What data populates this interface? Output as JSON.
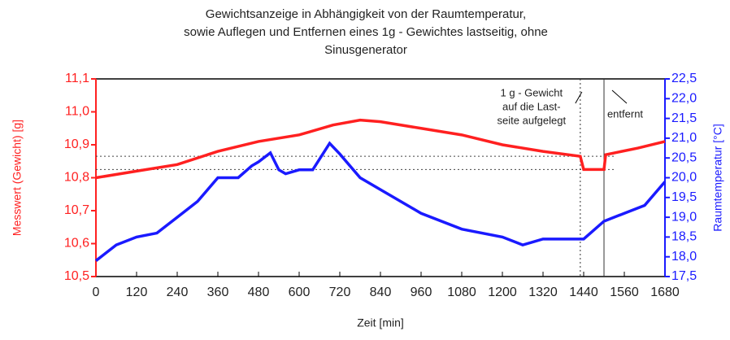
{
  "chart_data": {
    "type": "line",
    "title": [
      "Gewichtsanzeige in Abhängigkeit von der Raumtemperatur,",
      "sowie Auflegen und Entfernen eines 1g - Gewichtes lastseitig, ohne",
      "Sinusgenerator"
    ],
    "xlabel": "Zeit [min]",
    "ylabel": "Messwert (Gewicht) [g]",
    "y2label": "Raumtemperatur [°C]",
    "xlim": [
      0,
      1680
    ],
    "xticks": [
      0,
      120,
      240,
      360,
      480,
      600,
      720,
      840,
      960,
      1080,
      1200,
      1320,
      1440,
      1560,
      1680
    ],
    "ylim": [
      10.5,
      11.1
    ],
    "yticks": [
      {
        "value": 10.5,
        "label": "10,5"
      },
      {
        "value": 10.6,
        "label": "10,6"
      },
      {
        "value": 10.7,
        "label": "10,7"
      },
      {
        "value": 10.8,
        "label": "10,8"
      },
      {
        "value": 10.9,
        "label": "10,9"
      },
      {
        "value": 11.0,
        "label": "11,0"
      },
      {
        "value": 11.1,
        "label": "11,1"
      }
    ],
    "y2lim": [
      17.5,
      22.5
    ],
    "y2ticks": [
      {
        "value": 17.5,
        "label": "17,5"
      },
      {
        "value": 18.0,
        "label": "18,0"
      },
      {
        "value": 18.5,
        "label": "18,5"
      },
      {
        "value": 19.0,
        "label": "19,0"
      },
      {
        "value": 19.5,
        "label": "19,5"
      },
      {
        "value": 20.0,
        "label": "20,0"
      },
      {
        "value": 20.5,
        "label": "20,5"
      },
      {
        "value": 21.0,
        "label": "21,0"
      },
      {
        "value": 21.5,
        "label": "21,5"
      },
      {
        "value": 22.0,
        "label": "22,0"
      },
      {
        "value": 22.5,
        "label": "22,5"
      }
    ],
    "series": [
      {
        "color": "#ff2020",
        "x": [
          0,
          120,
          240,
          360,
          480,
          600,
          700,
          780,
          840,
          960,
          1080,
          1200,
          1320,
          1430,
          1440,
          1500,
          1505,
          1600,
          1680
        ],
        "values": [
          10.8,
          10.82,
          10.84,
          10.88,
          10.91,
          10.93,
          10.96,
          10.975,
          10.97,
          10.95,
          10.93,
          10.9,
          10.88,
          10.865,
          10.825,
          10.825,
          10.87,
          10.89,
          10.91
        ]
      },
      {
        "color": "#1a1aff",
        "axis": "y2",
        "x": [
          0,
          60,
          120,
          180,
          240,
          300,
          360,
          420,
          460,
          480,
          515,
          540,
          560,
          600,
          640,
          690,
          720,
          780,
          840,
          960,
          1080,
          1200,
          1260,
          1320,
          1440,
          1500,
          1560,
          1620,
          1680
        ],
        "values": [
          17.9,
          18.3,
          18.5,
          18.6,
          19.0,
          19.4,
          20.0,
          20.0,
          20.3,
          20.4,
          20.63,
          20.2,
          20.1,
          20.2,
          20.2,
          20.87,
          20.6,
          20.0,
          19.7,
          19.1,
          18.7,
          18.5,
          18.3,
          18.45,
          18.45,
          18.9,
          19.1,
          19.3,
          19.9
        ]
      }
    ],
    "hlines": [
      10.865,
      10.825
    ],
    "vlines": [
      1430,
      1500
    ],
    "annotations": [
      [
        "1 g - Gewicht",
        "auf die Last-",
        "seite aufgelegt"
      ],
      [
        "entfernt"
      ]
    ]
  }
}
